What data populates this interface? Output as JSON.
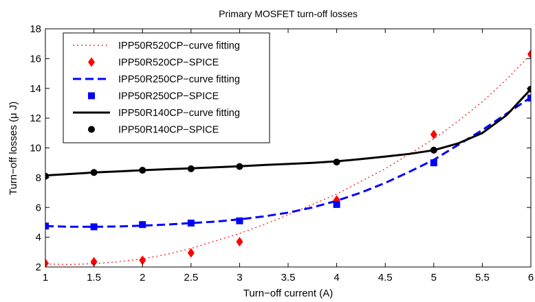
{
  "chart_data": {
    "type": "line",
    "title": "Primary MOSFET turn-off losses",
    "xlabel": "Turn−off current (A)",
    "ylabel": "Turn−off losses (μ J)",
    "xlim": [
      1,
      6
    ],
    "ylim": [
      2,
      18
    ],
    "xticks": [
      1,
      1.5,
      2,
      2.5,
      3,
      3.5,
      4,
      4.5,
      5,
      5.5,
      6
    ],
    "xtick_labels": [
      "1",
      "1.5",
      "2",
      "2.5",
      "3",
      "3.5",
      "4",
      "4.5",
      "5",
      "5.5",
      "6"
    ],
    "yticks": [
      2,
      4,
      6,
      8,
      10,
      12,
      14,
      16,
      18
    ],
    "ytick_labels": [
      "2",
      "4",
      "6",
      "8",
      "10",
      "12",
      "14",
      "16",
      "18"
    ],
    "grid": false,
    "legend_position": "top-left",
    "series": [
      {
        "name": "IPP50R520CP−curve fitting",
        "kind": "line",
        "style": "dotted",
        "color": "#ff0000",
        "x": [
          1,
          1.25,
          1.5,
          1.75,
          2,
          2.25,
          2.5,
          2.75,
          3,
          3.25,
          3.5,
          3.75,
          4,
          4.25,
          4.5,
          4.75,
          5,
          5.25,
          5.5,
          5.75,
          6
        ],
        "y": [
          2.2,
          2.17,
          2.22,
          2.35,
          2.55,
          2.85,
          3.25,
          3.75,
          4.25,
          4.85,
          5.5,
          6.2,
          6.9,
          7.75,
          8.6,
          9.6,
          10.6,
          11.8,
          13.1,
          14.6,
          16.3
        ]
      },
      {
        "name": "IPP50R520CP−SPICE",
        "kind": "marker",
        "marker": "diamond",
        "color": "#ff0000",
        "x": [
          1,
          1.5,
          2,
          2.5,
          3,
          4,
          5,
          6
        ],
        "y": [
          2.25,
          2.35,
          2.45,
          2.95,
          3.7,
          6.5,
          10.9,
          16.3
        ]
      },
      {
        "name": "IPP50R250CP−curve fitting",
        "kind": "line",
        "style": "dashed",
        "color": "#0000ff",
        "x": [
          1,
          1.25,
          1.5,
          1.75,
          2,
          2.25,
          2.5,
          2.75,
          3,
          3.25,
          3.5,
          3.75,
          4,
          4.25,
          4.5,
          4.75,
          5,
          5.25,
          5.5,
          5.75,
          6
        ],
        "y": [
          4.75,
          4.7,
          4.7,
          4.72,
          4.78,
          4.85,
          4.95,
          5.05,
          5.2,
          5.4,
          5.65,
          6.0,
          6.45,
          7.0,
          7.65,
          8.4,
          9.2,
          10.2,
          11.2,
          12.3,
          13.4
        ]
      },
      {
        "name": "IPP50R250CP−SPICE",
        "kind": "marker",
        "marker": "square",
        "color": "#0000ff",
        "x": [
          1,
          1.5,
          2,
          2.5,
          3,
          4,
          5,
          6
        ],
        "y": [
          4.75,
          4.7,
          4.85,
          4.95,
          5.1,
          6.2,
          9.0,
          13.35
        ]
      },
      {
        "name": "IPP50R140CP−curve fitting",
        "kind": "line",
        "style": "solid",
        "color": "#000000",
        "x": [
          1,
          1.25,
          1.5,
          1.75,
          2,
          2.25,
          2.5,
          2.75,
          3,
          3.25,
          3.5,
          3.75,
          4,
          4.25,
          4.5,
          4.75,
          5,
          5.25,
          5.5,
          5.75,
          6
        ],
        "y": [
          8.15,
          8.25,
          8.35,
          8.42,
          8.5,
          8.57,
          8.63,
          8.7,
          8.77,
          8.85,
          8.92,
          9.0,
          9.1,
          9.25,
          9.42,
          9.6,
          9.85,
          10.3,
          11.0,
          12.2,
          13.95
        ]
      },
      {
        "name": "IPP50R140CP−SPICE",
        "kind": "marker",
        "marker": "circle",
        "color": "#000000",
        "x": [
          1,
          1.5,
          2,
          2.5,
          3,
          4,
          5,
          6
        ],
        "y": [
          8.1,
          8.35,
          8.5,
          8.6,
          8.75,
          9.05,
          9.85,
          13.95
        ]
      }
    ]
  }
}
